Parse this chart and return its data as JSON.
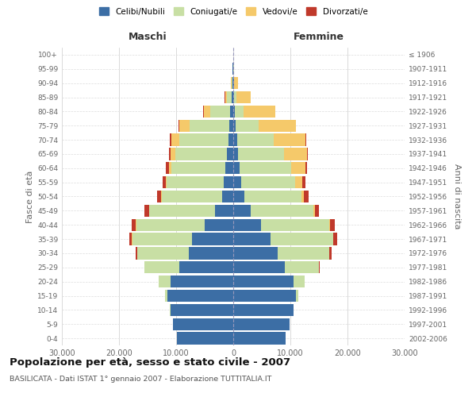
{
  "age_groups": [
    "100+",
    "95-99",
    "90-94",
    "85-89",
    "80-84",
    "75-79",
    "70-74",
    "65-69",
    "60-64",
    "55-59",
    "50-54",
    "45-49",
    "40-44",
    "35-39",
    "30-34",
    "25-29",
    "20-24",
    "15-19",
    "10-14",
    "5-9",
    "0-4"
  ],
  "birth_years": [
    "≤ 1906",
    "1907-1911",
    "1912-1916",
    "1917-1921",
    "1922-1926",
    "1927-1931",
    "1932-1936",
    "1937-1941",
    "1942-1946",
    "1947-1951",
    "1952-1956",
    "1957-1961",
    "1962-1966",
    "1967-1971",
    "1972-1976",
    "1977-1981",
    "1982-1986",
    "1987-1991",
    "1992-1996",
    "1997-2001",
    "2002-2006"
  ],
  "maschi": {
    "celibi": [
      30,
      80,
      120,
      250,
      500,
      700,
      900,
      1100,
      1400,
      1600,
      2000,
      3200,
      5000,
      7200,
      7800,
      9500,
      11000,
      11500,
      11000,
      10500,
      9800
    ],
    "coniugati": [
      15,
      40,
      200,
      800,
      3500,
      7000,
      8500,
      9000,
      9500,
      10000,
      10500,
      11500,
      12000,
      10500,
      9000,
      6000,
      2000,
      500,
      80,
      10,
      3
    ],
    "vedovi": [
      8,
      20,
      100,
      400,
      1200,
      1800,
      1500,
      900,
      400,
      150,
      70,
      40,
      25,
      12,
      6,
      3,
      1,
      0,
      0,
      0,
      0
    ],
    "divorziati": [
      3,
      8,
      15,
      30,
      60,
      100,
      150,
      250,
      450,
      600,
      700,
      750,
      700,
      500,
      250,
      100,
      30,
      8,
      2,
      0,
      0
    ]
  },
  "femmine": {
    "nubili": [
      20,
      60,
      100,
      180,
      300,
      450,
      650,
      900,
      1100,
      1400,
      1900,
      3000,
      4800,
      6500,
      7800,
      9000,
      10500,
      11000,
      10500,
      9800,
      9200
    ],
    "coniugate": [
      5,
      20,
      80,
      350,
      1500,
      4000,
      6500,
      8000,
      9000,
      9500,
      10000,
      11000,
      12000,
      11000,
      9000,
      6000,
      2000,
      400,
      60,
      10,
      2
    ],
    "vedove": [
      15,
      80,
      600,
      2500,
      5500,
      6500,
      5500,
      4000,
      2500,
      1200,
      500,
      250,
      120,
      60,
      25,
      10,
      4,
      1,
      0,
      0,
      0
    ],
    "divorziate": [
      2,
      5,
      10,
      20,
      40,
      70,
      100,
      200,
      380,
      600,
      750,
      800,
      850,
      700,
      350,
      120,
      30,
      6,
      1,
      0,
      0
    ]
  },
  "colors": {
    "celibi": "#3c6ea5",
    "coniugati": "#c8dfa4",
    "vedovi": "#f5c96a",
    "divorziati": "#c0392b"
  },
  "xlim": 30000,
  "title": "Popolazione per età, sesso e stato civile - 2007",
  "subtitle": "BASILICATA - Dati ISTAT 1° gennaio 2007 - Elaborazione TUTTITALIA.IT",
  "xlabel_left": "Maschi",
  "xlabel_right": "Femmine",
  "ylabel_left": "Fasce di età",
  "ylabel_right": "Anni di nascita"
}
